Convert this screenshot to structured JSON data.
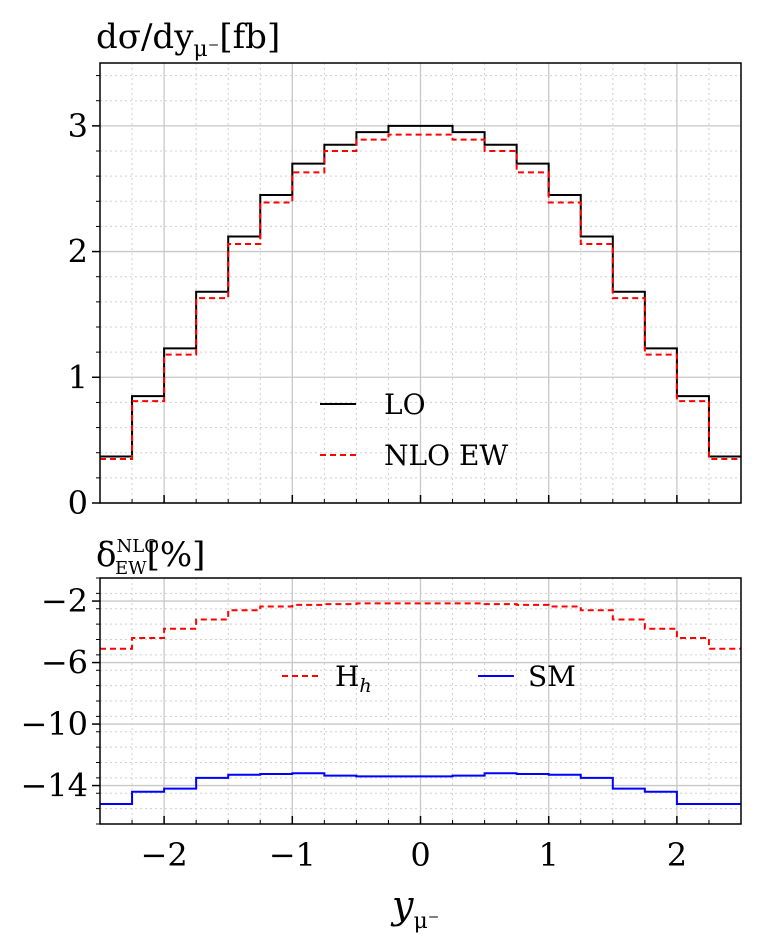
{
  "chart_data": [
    {
      "type": "line",
      "panel": "top",
      "title": "dσ/dy",
      "title_sub": "μ⁻",
      "title_unit": "[fb]",
      "xlim": [
        -2.5,
        2.5
      ],
      "ylim": [
        0,
        3.5
      ],
      "yticks": [
        0,
        1,
        2,
        3
      ],
      "ytick_labels": [
        "0",
        "1",
        "2",
        "3"
      ],
      "grid": true,
      "legend_position": "lower-center",
      "bin_edges": [
        -2.5,
        -2.25,
        -2.0,
        -1.75,
        -1.5,
        -1.25,
        -1.0,
        -0.75,
        -0.5,
        -0.25,
        0.0,
        0.25,
        0.5,
        0.75,
        1.0,
        1.25,
        1.5,
        1.75,
        2.0,
        2.25,
        2.5
      ],
      "series": [
        {
          "name": "LO",
          "color": "#000000",
          "style": "solid",
          "values": [
            0.37,
            0.85,
            1.23,
            1.68,
            2.12,
            2.45,
            2.7,
            2.85,
            2.95,
            3.0,
            3.0,
            2.95,
            2.85,
            2.7,
            2.45,
            2.12,
            1.68,
            1.23,
            0.85,
            0.37
          ]
        },
        {
          "name": "NLO EW",
          "color": "#ff0000",
          "style": "dashed",
          "values": [
            0.35,
            0.81,
            1.18,
            1.63,
            2.06,
            2.39,
            2.63,
            2.8,
            2.89,
            2.93,
            2.93,
            2.89,
            2.8,
            2.63,
            2.39,
            2.06,
            1.63,
            1.18,
            0.81,
            0.35
          ]
        }
      ]
    },
    {
      "type": "line",
      "panel": "bottom",
      "title": "δ",
      "title_sup": "NLO",
      "title_sub": "EW",
      "title_unit": "[%]",
      "xlabel": "y",
      "xlabel_sub": "μ⁻",
      "xlim": [
        -2.5,
        2.5
      ],
      "ylim": [
        -16.5,
        -0.5
      ],
      "xticks": [
        -2,
        -1,
        0,
        1,
        2
      ],
      "xtick_labels": [
        "−2",
        "−1",
        "0",
        "1",
        "2"
      ],
      "yticks": [
        -2,
        -6,
        -10,
        -14
      ],
      "ytick_labels": [
        "−2",
        "−6",
        "−10",
        "−14"
      ],
      "grid": true,
      "legend_position": "center",
      "bin_edges": [
        -2.5,
        -2.25,
        -2.0,
        -1.75,
        -1.5,
        -1.25,
        -1.0,
        -0.75,
        -0.5,
        -0.25,
        0.0,
        0.25,
        0.5,
        0.75,
        1.0,
        1.25,
        1.5,
        1.75,
        2.0,
        2.25,
        2.5
      ],
      "series": [
        {
          "name": "H",
          "name_sub": "h",
          "color": "#ff0000",
          "style": "dashed",
          "values": [
            -5.1,
            -4.4,
            -3.8,
            -3.2,
            -2.6,
            -2.35,
            -2.25,
            -2.2,
            -2.15,
            -2.15,
            -2.15,
            -2.15,
            -2.2,
            -2.25,
            -2.35,
            -2.6,
            -3.2,
            -3.8,
            -4.4,
            -5.1
          ]
        },
        {
          "name": "SM",
          "color": "#0000ff",
          "style": "solid",
          "values": [
            -15.2,
            -14.4,
            -14.2,
            -13.5,
            -13.3,
            -13.25,
            -13.2,
            -13.35,
            -13.4,
            -13.4,
            -13.4,
            -13.35,
            -13.2,
            -13.25,
            -13.3,
            -13.5,
            -14.2,
            -14.4,
            -15.2,
            -15.2
          ]
        }
      ]
    }
  ]
}
